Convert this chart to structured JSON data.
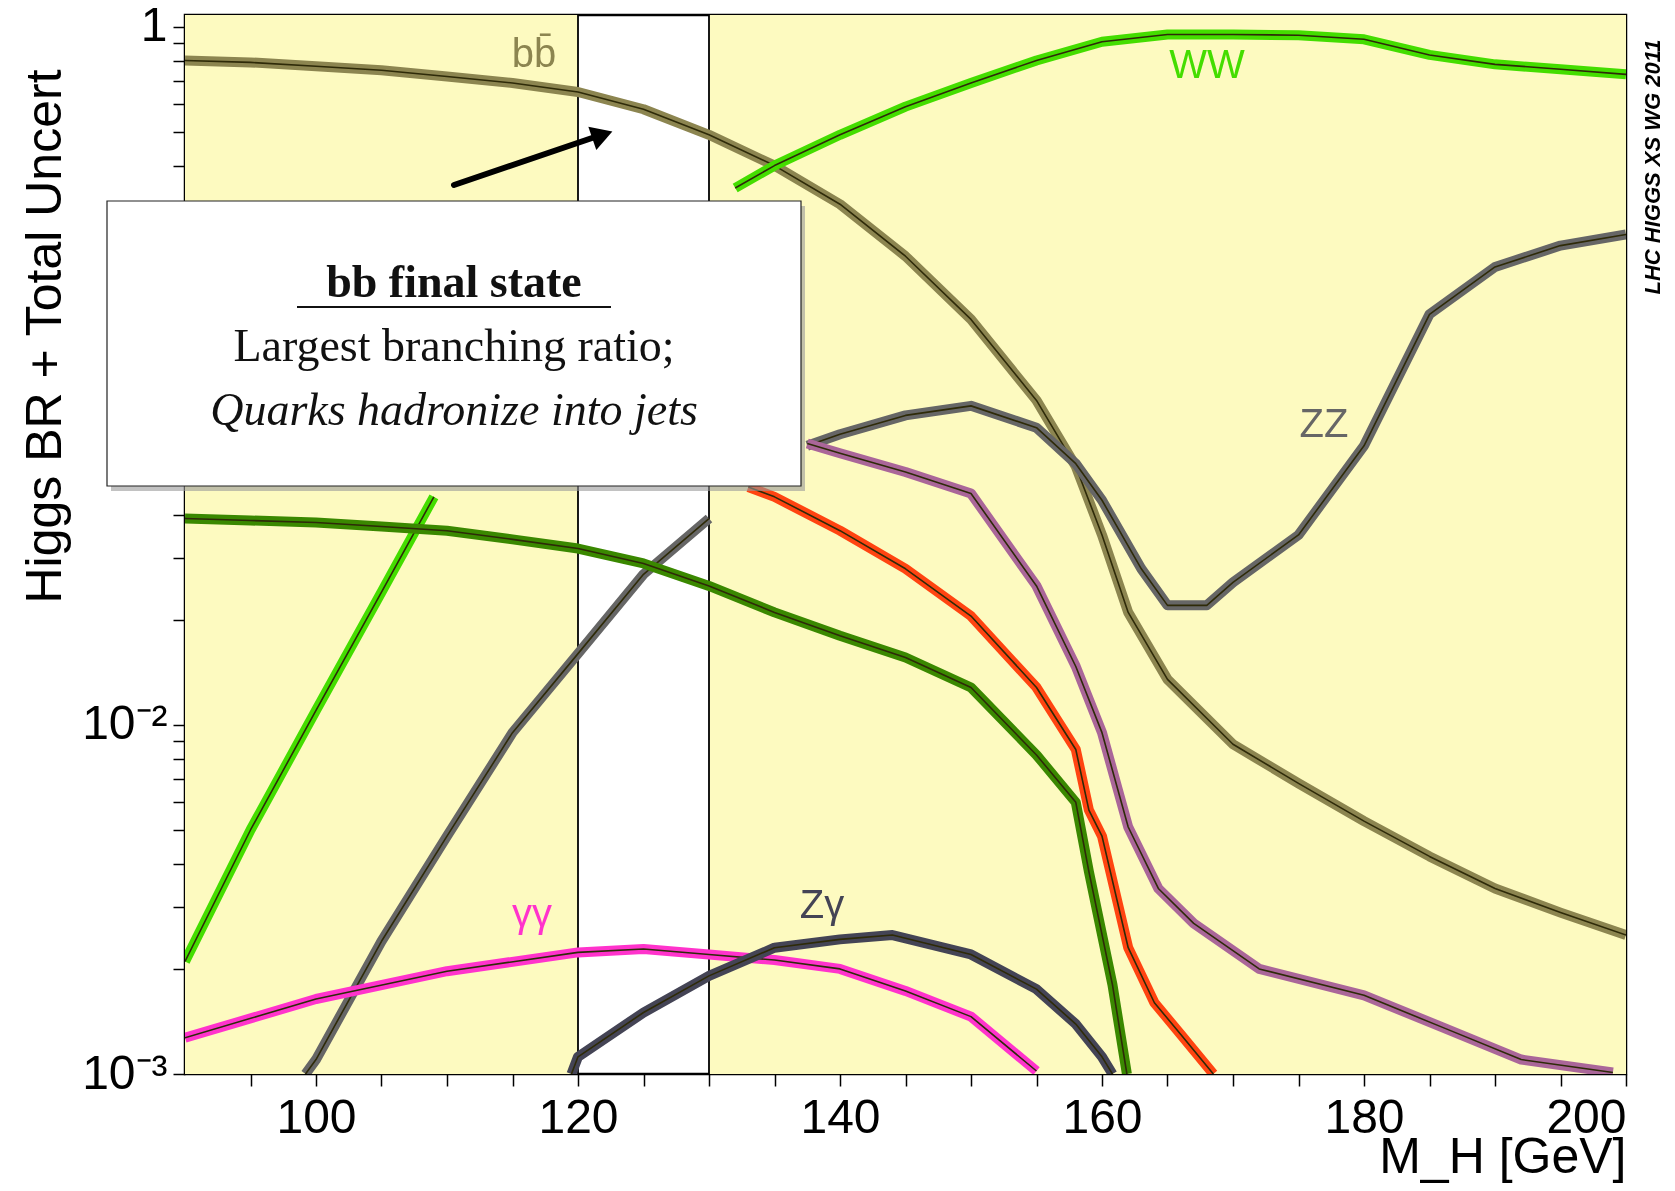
{
  "chart_data": {
    "type": "line",
    "xlabel": "M_H [GeV]",
    "ylabel": "Higgs BR + Total Uncert",
    "log": "y",
    "xlim": [
      90,
      200
    ],
    "ylim": [
      0.001,
      1.08
    ],
    "xticks": [
      {
        "value": 95,
        "label": null
      },
      100,
      {
        "value": 105,
        "label": null
      },
      {
        "value": 110,
        "label": null
      },
      {
        "value": 115,
        "label": null
      },
      120,
      {
        "value": 125,
        "label": null
      },
      {
        "value": 130,
        "label": null
      },
      {
        "value": 135,
        "label": null
      },
      140,
      {
        "value": 145,
        "label": null
      },
      {
        "value": 150,
        "label": null
      },
      {
        "value": 155,
        "label": null
      },
      160,
      {
        "value": 165,
        "label": null
      },
      {
        "value": 170,
        "label": null
      },
      {
        "value": 175,
        "label": null
      },
      180,
      {
        "value": 185,
        "label": null
      },
      {
        "value": 190,
        "label": null
      },
      {
        "value": 195,
        "label": null
      },
      200
    ],
    "yticks": [
      {
        "value": 0.001,
        "label": "10⁻³"
      },
      {
        "value": 0.002,
        "label": null
      },
      {
        "value": 0.003,
        "label": null
      },
      {
        "value": 0.004,
        "label": null
      },
      {
        "value": 0.005,
        "label": null
      },
      {
        "value": 0.006,
        "label": null
      },
      {
        "value": 0.007,
        "label": null
      },
      {
        "value": 0.008,
        "label": null
      },
      {
        "value": 0.009,
        "label": null
      },
      {
        "value": 0.01,
        "label": "10⁻²"
      },
      {
        "value": 0.02,
        "label": null
      },
      {
        "value": 0.03,
        "label": null
      },
      {
        "value": 0.04,
        "label": null
      },
      {
        "value": 0.05,
        "label": null
      },
      {
        "value": 0.06,
        "label": null
      },
      {
        "value": 0.07,
        "label": null
      },
      {
        "value": 0.08,
        "label": null
      },
      {
        "value": 0.09,
        "label": null
      },
      {
        "value": 0.1,
        "label": null
      },
      {
        "value": 0.2,
        "label": null
      },
      {
        "value": 0.3,
        "label": null
      },
      {
        "value": 0.4,
        "label": null
      },
      {
        "value": 0.5,
        "label": null
      },
      {
        "value": 0.6,
        "label": null
      },
      {
        "value": 0.7,
        "label": null
      },
      {
        "value": 0.8,
        "label": null
      },
      {
        "value": 0.9,
        "label": null
      },
      1
    ],
    "bands": [
      {
        "axis": "x",
        "from": 90,
        "to": 120,
        "color": "#fdfac0"
      },
      {
        "axis": "x",
        "from": 130,
        "to": 200,
        "color": "#fdfac0"
      }
    ],
    "ref_lines": [
      {
        "axis": "x",
        "value": 120,
        "color": "#000000"
      },
      {
        "axis": "x",
        "value": 130,
        "color": "#000000"
      }
    ],
    "series": [
      {
        "name": "bb̄",
        "color": "#8c8550",
        "x": [
          90,
          95,
          100,
          105,
          110,
          115,
          120,
          125,
          130,
          135,
          140,
          145,
          150,
          155,
          158,
          160,
          162,
          165,
          170,
          175,
          180,
          185,
          190,
          195,
          200
        ],
        "values": [
          0.8,
          0.79,
          0.77,
          0.75,
          0.72,
          0.69,
          0.65,
          0.58,
          0.49,
          0.4,
          0.31,
          0.22,
          0.145,
          0.085,
          0.055,
          0.035,
          0.021,
          0.0135,
          0.0088,
          0.0068,
          0.0053,
          0.0042,
          0.0034,
          0.0029,
          0.0025
        ]
      },
      {
        "name": "WW",
        "color": "#44dd00",
        "x": [
          90,
          95,
          100,
          105,
          109,
          115,
          120,
          125,
          130,
          132,
          135,
          140,
          145,
          150,
          155,
          160,
          165,
          170,
          175,
          180,
          185,
          190,
          195,
          200
        ],
        "values": [
          0.0021,
          0.005,
          0.011,
          0.024,
          0.045,
          null,
          null,
          null,
          null,
          0.345,
          0.4,
          0.49,
          0.59,
          0.69,
          0.8,
          0.905,
          0.95,
          0.95,
          0.945,
          0.92,
          0.83,
          0.78,
          0.755,
          0.73
        ]
      },
      {
        "name": "ZZ",
        "color": "#666666",
        "x": [
          99.2,
          100,
          105,
          110,
          115,
          120,
          125,
          130,
          135,
          137.5,
          140,
          145,
          150,
          155,
          158,
          160,
          163,
          165,
          168,
          170,
          175,
          180,
          185,
          190,
          195,
          200
        ],
        "values": [
          0.001,
          0.0011,
          0.0024,
          0.0048,
          0.0095,
          0.016,
          0.027,
          0.039,
          null,
          0.063,
          0.068,
          0.077,
          0.082,
          0.071,
          0.056,
          0.044,
          0.028,
          0.022,
          0.022,
          0.0256,
          0.035,
          0.063,
          0.15,
          0.205,
          0.236,
          0.254
        ]
      },
      {
        "color": "#aa6699",
        "x": [
          137.5,
          140,
          145,
          150,
          155,
          158,
          160,
          162,
          164.3,
          167,
          172,
          180,
          186,
          192,
          199
        ],
        "values": [
          0.064,
          0.06,
          0.053,
          0.046,
          0.025,
          0.0147,
          0.0095,
          0.0051,
          0.0034,
          0.0027,
          0.002,
          0.00168,
          0.00136,
          0.0011,
          0.00101
        ]
      },
      {
        "color": "#ff4411",
        "x": [
          133,
          135,
          140,
          145,
          150,
          155,
          158,
          159,
          160,
          162,
          164,
          166,
          168.5
        ],
        "values": [
          0.048,
          0.045,
          0.036,
          0.028,
          0.0205,
          0.0128,
          0.0085,
          0.0057,
          0.0048,
          0.0023,
          0.0016,
          0.0013,
          0.001
        ]
      },
      {
        "color": "#3a8800",
        "x": [
          90,
          95,
          100,
          105,
          110,
          115,
          120,
          125,
          130,
          135,
          140,
          145,
          150,
          155,
          158,
          159,
          160.8,
          161.9
        ],
        "values": [
          0.039,
          0.0385,
          0.038,
          0.037,
          0.036,
          0.034,
          0.032,
          0.029,
          0.025,
          0.021,
          0.018,
          0.0156,
          0.0128,
          0.0082,
          0.006,
          0.0038,
          0.0018,
          0.001
        ]
      },
      {
        "name": "γγ",
        "color": "#ff33cc",
        "x": [
          90,
          100,
          110,
          120,
          125,
          130,
          135,
          140,
          145,
          150,
          155
        ],
        "values": [
          0.00127,
          0.00164,
          0.00197,
          0.00223,
          0.00228,
          0.0022,
          0.00212,
          0.002,
          0.00173,
          0.00146,
          0.00102
        ]
      },
      {
        "name": "Zγ",
        "color": "#444455",
        "x": [
          119.5,
          120,
          125,
          130,
          135,
          140,
          144,
          150,
          155,
          158,
          160,
          160.8
        ],
        "values": [
          0.001,
          0.00112,
          0.0015,
          0.00191,
          0.0023,
          0.00243,
          0.0025,
          0.0022,
          0.00175,
          0.00139,
          0.00112,
          0.001
        ]
      }
    ],
    "annotations": [
      "bb final state",
      "Largest branching ratio;",
      "Quarks hadronize into jets",
      "LHC HIGGS XS WG 2011"
    ]
  }
}
